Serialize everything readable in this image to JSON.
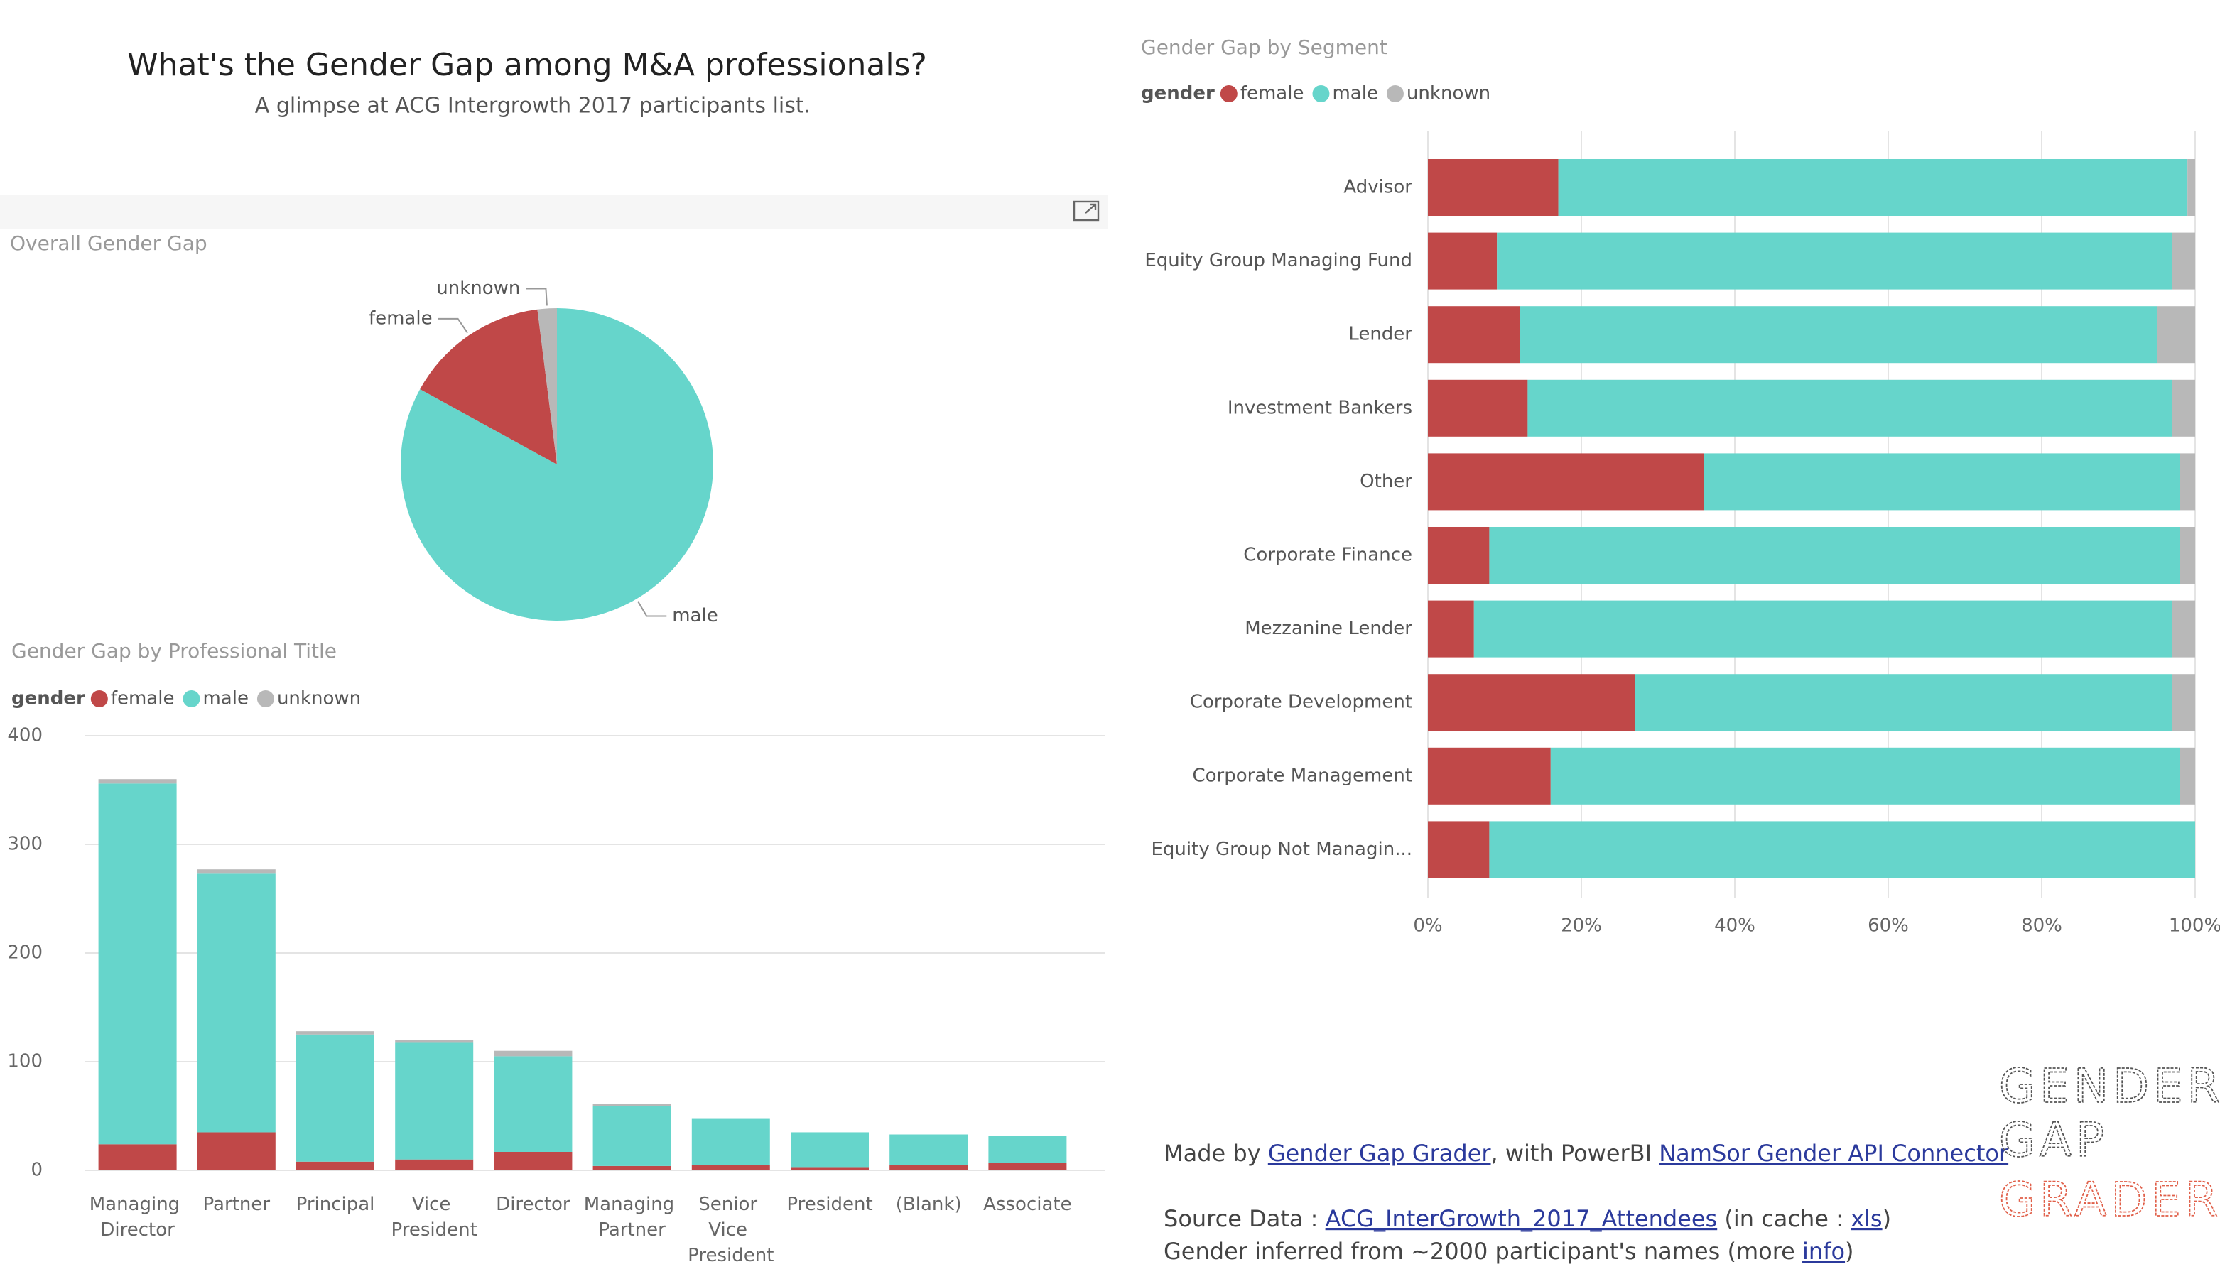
{
  "header": {
    "title": "What's the Gender Gap among M&A professionals?",
    "subtitle": "A glimpse at ACG Intergrowth 2017 participants list."
  },
  "chart_data": [
    {
      "type": "pie",
      "title": "Overall Gender Gap",
      "categories": [
        "male",
        "female",
        "unknown"
      ],
      "values": [
        83,
        15,
        2
      ],
      "colors": [
        "#66d5cb",
        "#c04848",
        "#b8b8b8"
      ]
    },
    {
      "type": "stacked_bar",
      "title": "Gender Gap by Professional Title",
      "legend_title": "gender",
      "categories": [
        "Managing Director",
        "Partner",
        "Principal",
        "Vice President",
        "Director",
        "Managing Partner",
        "Senior Vice President",
        "President",
        "(Blank)",
        "Associate"
      ],
      "series": [
        {
          "name": "female",
          "color": "#c04848",
          "values": [
            24,
            35,
            8,
            10,
            17,
            4,
            5,
            3,
            5,
            7
          ]
        },
        {
          "name": "male",
          "color": "#66d5cb",
          "values": [
            332,
            238,
            117,
            108,
            88,
            55,
            43,
            32,
            28,
            25
          ]
        },
        {
          "name": "unknown",
          "color": "#b8b8b8",
          "values": [
            4,
            4,
            3,
            2,
            5,
            2,
            0,
            0,
            0,
            0
          ]
        }
      ],
      "ylim": [
        0,
        400
      ],
      "yticks": [
        0,
        100,
        200,
        300,
        400
      ],
      "grid": true
    },
    {
      "type": "stacked_hbar",
      "title": "Gender Gap by Segment",
      "legend_title": "gender",
      "categories": [
        "Advisor",
        "Equity Group Managing Fund",
        "Lender",
        "Investment Bankers",
        "Other",
        "Corporate Finance",
        "Mezzanine Lender",
        "Corporate Development",
        "Corporate Management",
        "Equity Group Not Managin..."
      ],
      "series": [
        {
          "name": "female",
          "color": "#c04848",
          "values": [
            17,
            9,
            12,
            13,
            36,
            8,
            6,
            27,
            16,
            8
          ]
        },
        {
          "name": "male",
          "color": "#66d5cb",
          "values": [
            82,
            88,
            83,
            84,
            62,
            90,
            91,
            70,
            82,
            92
          ]
        },
        {
          "name": "unknown",
          "color": "#b8b8b8",
          "values": [
            1,
            3,
            5,
            3,
            2,
            2,
            3,
            3,
            2,
            0
          ]
        }
      ],
      "xlim": [
        0,
        100
      ],
      "xticks": [
        {
          "value": 0,
          "label": "0%"
        },
        {
          "value": 20,
          "label": "20%"
        },
        {
          "value": 40,
          "label": "40%"
        },
        {
          "value": 60,
          "label": "60%"
        },
        {
          "value": 80,
          "label": "80%"
        },
        {
          "value": 100,
          "label": "100%"
        }
      ],
      "grid": true
    }
  ],
  "footer": {
    "lines": [
      [
        {
          "text": "Made by "
        },
        {
          "text": "Gender Gap Grader",
          "link": true
        },
        {
          "text": ", with PowerBI "
        },
        {
          "text": "NamSor Gender API Connector",
          "link": true
        }
      ],
      [
        {
          "text": "Source Data : "
        },
        {
          "text": "ACG_InterGrowth_2017_Attendees",
          "link": true
        },
        {
          "text": " (in cache : "
        },
        {
          "text": "xls",
          "link": true
        },
        {
          "text": ")"
        }
      ],
      [
        {
          "text": "Gender inferred from ~2000 participant's names (more "
        },
        {
          "text": "info",
          "link": true
        },
        {
          "text": ")"
        }
      ]
    ],
    "logo": [
      "GENDER",
      "GAP",
      "GRADER"
    ]
  }
}
